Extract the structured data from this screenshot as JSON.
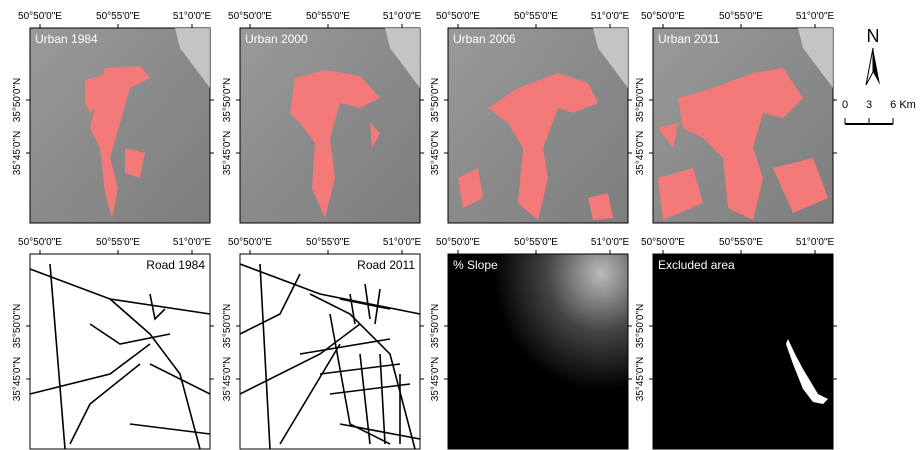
{
  "panels": [
    {
      "title": "Urban 1984",
      "lon_labels": [
        "50°50'0\"E",
        "50°55'0\"E",
        "51°0'0\"E"
      ],
      "lat_labels": [
        "35°50'0\"N",
        "35°45'0\"N"
      ]
    },
    {
      "title": "Urban 2000",
      "lon_labels": [
        "50°50'0\"E",
        "50°55'0\"E",
        "51°0'0\"E"
      ],
      "lat_labels": [
        "35°50'0\"N",
        "35°45'0\"N"
      ]
    },
    {
      "title": "Urban 2006",
      "lon_labels": [
        "50°50'0\"E",
        "50°55'0\"E",
        "51°0'0\"E"
      ],
      "lat_labels": [
        "35°50'0\"N",
        "35°45'0\"N"
      ]
    },
    {
      "title": "Urban 2011",
      "lon_labels": [
        "50°50'0\"E",
        "50°55'0\"E",
        "51°0'0\"E"
      ],
      "lat_labels": [
        "35°50'0\"N",
        "35°45'0\"N"
      ]
    },
    {
      "title": "Road 1984",
      "lon_labels": [
        "50°50'0\"E",
        "50°55'0\"E",
        "51°0'0\"E"
      ],
      "lat_labels": [
        "35°50'0\"N",
        "35°45'0\"N"
      ]
    },
    {
      "title": "Road 2011",
      "lon_labels": [
        "50°50'0\"E",
        "50°55'0\"E",
        "51°0'0\"E"
      ],
      "lat_labels": [
        "35°50'0\"N",
        "35°45'0\"N"
      ]
    },
    {
      "title": "% Slope",
      "lon_labels": [
        "50°50'0\"E",
        "50°55'0\"E",
        "51°0'0\"E"
      ],
      "lat_labels": [
        "35°50'0\"N",
        "35°45'0\"N"
      ]
    },
    {
      "title": "Excluded area",
      "lon_labels": [
        "50°50'0\"E",
        "50°55'0\"E",
        "51°0'0\"E"
      ],
      "lat_labels": [
        "35°50'0\"N",
        "35°45'0\"N"
      ]
    }
  ],
  "north_arrow": "N",
  "scale_bar": [
    "0",
    "3",
    "6 Km"
  ]
}
